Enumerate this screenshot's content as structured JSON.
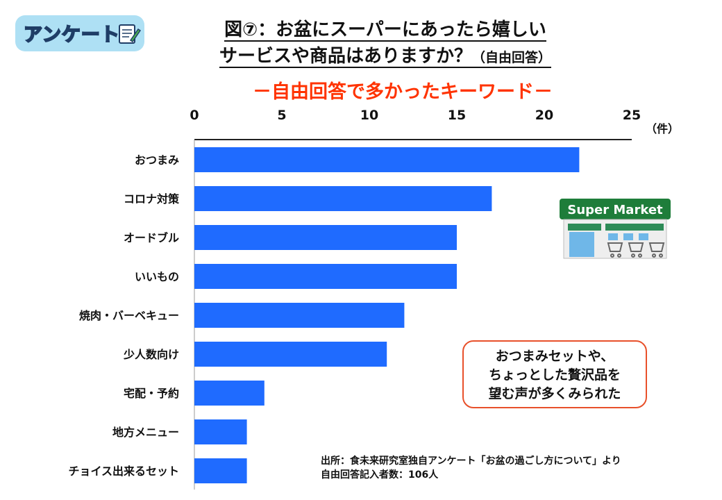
{
  "badge": {
    "label": "アンケート"
  },
  "title": {
    "line1": "図⑦：お盆にスーパーにあったら嬉しい",
    "line2": "サービスや商品はありますか？",
    "line2_suffix": "（自由回答）",
    "subtitle": "－自由回答で多かったキーワード－"
  },
  "illustration": {
    "store_sign": "Super Market"
  },
  "callout": {
    "line1": "おつまみセットや、",
    "line2": "ちょっとした贅沢品を",
    "line3": "望む声が多くみられた"
  },
  "source": {
    "line1": "出所：食未来研究室独自アンケート「お盆の過ごし方について」より",
    "line2": "自由回答記入者数：106人"
  },
  "colors": {
    "bar": "#1f6bff",
    "subtitle": "#ff3300",
    "callout_border": "#e8502a"
  },
  "chart_data": {
    "type": "bar",
    "orientation": "horizontal",
    "unit_label": "（件）",
    "xlim": [
      0,
      25
    ],
    "xticks": [
      0,
      5,
      10,
      15,
      20,
      25
    ],
    "xtick_labels": [
      "0",
      "5",
      "10",
      "15",
      "20",
      "25"
    ],
    "categories": [
      "おつまみ",
      "コロナ対策",
      "オードブル",
      "いいもの",
      "焼肉・バーベキュー",
      "少人数向け",
      "宅配・予約",
      "地方メニュー",
      "チョイス出来るセット"
    ],
    "values": [
      22,
      17,
      15,
      15,
      12,
      11,
      4,
      3,
      3
    ]
  }
}
